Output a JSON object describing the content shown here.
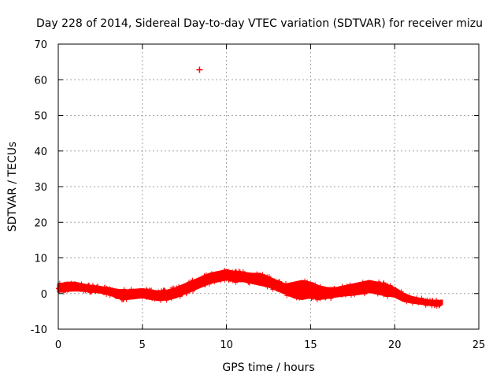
{
  "chart_data": {
    "type": "scatter",
    "title": "Day 228 of 2014, Sidereal Day-to-day VTEC variation (SDTVAR) for receiver mizu",
    "xlabel": "GPS time / hours",
    "ylabel": "SDTVAR / TECUs",
    "xlim": [
      0,
      25
    ],
    "ylim": [
      -10,
      70
    ],
    "x_ticks": [
      0,
      5,
      10,
      15,
      20,
      25
    ],
    "x_tick_labels": [
      "0",
      "5",
      "10",
      "15",
      "20",
      "25"
    ],
    "y_ticks": [
      -10,
      0,
      10,
      20,
      30,
      40,
      50,
      60,
      70
    ],
    "y_tick_labels": [
      "-10",
      "0",
      "10",
      "20",
      "30",
      "40",
      "50",
      "60",
      "70"
    ],
    "grid": true,
    "marker": "+",
    "color": "#ff0000",
    "band": {
      "x": [
        0,
        0.5,
        1,
        1.5,
        2,
        2.5,
        3,
        3.5,
        4,
        4.5,
        5,
        5.5,
        6,
        6.5,
        7,
        7.5,
        8,
        8.5,
        9,
        9.5,
        10,
        10.5,
        11,
        11.5,
        12,
        12.5,
        13,
        13.5,
        14,
        14.5,
        15,
        15.5,
        16,
        16.5,
        17,
        17.5,
        18,
        18.5,
        19,
        19.5,
        20,
        20.5,
        21,
        21.5,
        22,
        22.5,
        22.8
      ],
      "low": [
        0.5,
        0.8,
        0.9,
        0.8,
        0.6,
        0.3,
        0.0,
        -1.2,
        -1.5,
        -1.3,
        -1.0,
        -1.5,
        -1.8,
        -1.6,
        -1.0,
        0.0,
        1.0,
        2.0,
        3.0,
        3.5,
        4.0,
        3.5,
        3.5,
        3.0,
        2.5,
        2.0,
        1.0,
        0.0,
        -1.0,
        -1.5,
        -1.0,
        -1.5,
        -1.2,
        -0.8,
        -0.5,
        -0.3,
        0.0,
        0.5,
        0.0,
        -0.5,
        -0.8,
        -2.0,
        -2.5,
        -2.8,
        -3.0,
        -3.2,
        -3.0
      ],
      "high": [
        2.5,
        3.0,
        3.0,
        2.5,
        2.0,
        1.8,
        1.5,
        1.0,
        0.8,
        1.0,
        1.2,
        0.8,
        0.5,
        0.8,
        1.5,
        2.5,
        3.5,
        4.5,
        5.5,
        6.0,
        6.5,
        6.0,
        5.8,
        5.5,
        5.5,
        4.5,
        3.5,
        2.5,
        3.0,
        3.5,
        3.0,
        2.0,
        1.5,
        1.5,
        2.0,
        2.5,
        3.0,
        3.5,
        3.0,
        2.5,
        1.5,
        0.0,
        -1.0,
        -1.5,
        -2.0,
        -2.2,
        -2.0
      ]
    },
    "outliers": [
      {
        "x": 8.4,
        "y": 62.8
      }
    ]
  }
}
